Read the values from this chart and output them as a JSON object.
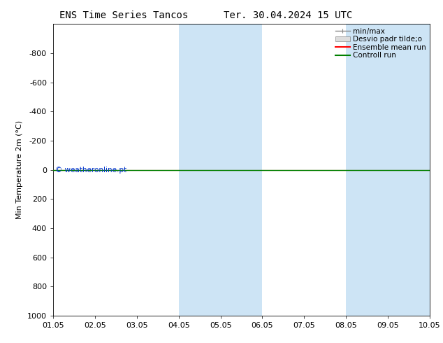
{
  "title_left": "ENS Time Series Tancos",
  "title_right": "Ter. 30.04.2024 15 UTC",
  "ylabel": "Min Temperature 2m (°C)",
  "xlim_dates": [
    "01.05",
    "02.05",
    "03.05",
    "04.05",
    "05.05",
    "06.05",
    "07.05",
    "08.05",
    "09.05",
    "10.05"
  ],
  "ymin": -1000,
  "ymax": 1000,
  "yticks": [
    -800,
    -600,
    -400,
    -200,
    0,
    200,
    400,
    600,
    800,
    1000
  ],
  "background_color": "#ffffff",
  "plot_bg_color": "#ffffff",
  "shaded_bands": [
    {
      "xmin": 3.0,
      "xmax": 5.0,
      "color": "#cde4f5",
      "alpha": 1.0
    },
    {
      "xmin": 7.0,
      "xmax": 9.0,
      "color": "#cde4f5",
      "alpha": 1.0
    }
  ],
  "green_line_y": 0,
  "green_line_color": "#008000",
  "red_line_y": 0,
  "red_line_color": "#ff0000",
  "watermark": "© weatheronline.pt",
  "watermark_color": "#0033cc",
  "legend_labels": [
    "min/max",
    "Desvio padr tilde;o",
    "Ensemble mean run",
    "Controll run"
  ],
  "legend_line_color": "#888888",
  "legend_patch_color": "#dddddd",
  "legend_red": "#ff0000",
  "legend_green": "#008000",
  "title_fontsize": 10,
  "axis_label_fontsize": 8,
  "tick_fontsize": 8,
  "legend_fontsize": 7.5
}
